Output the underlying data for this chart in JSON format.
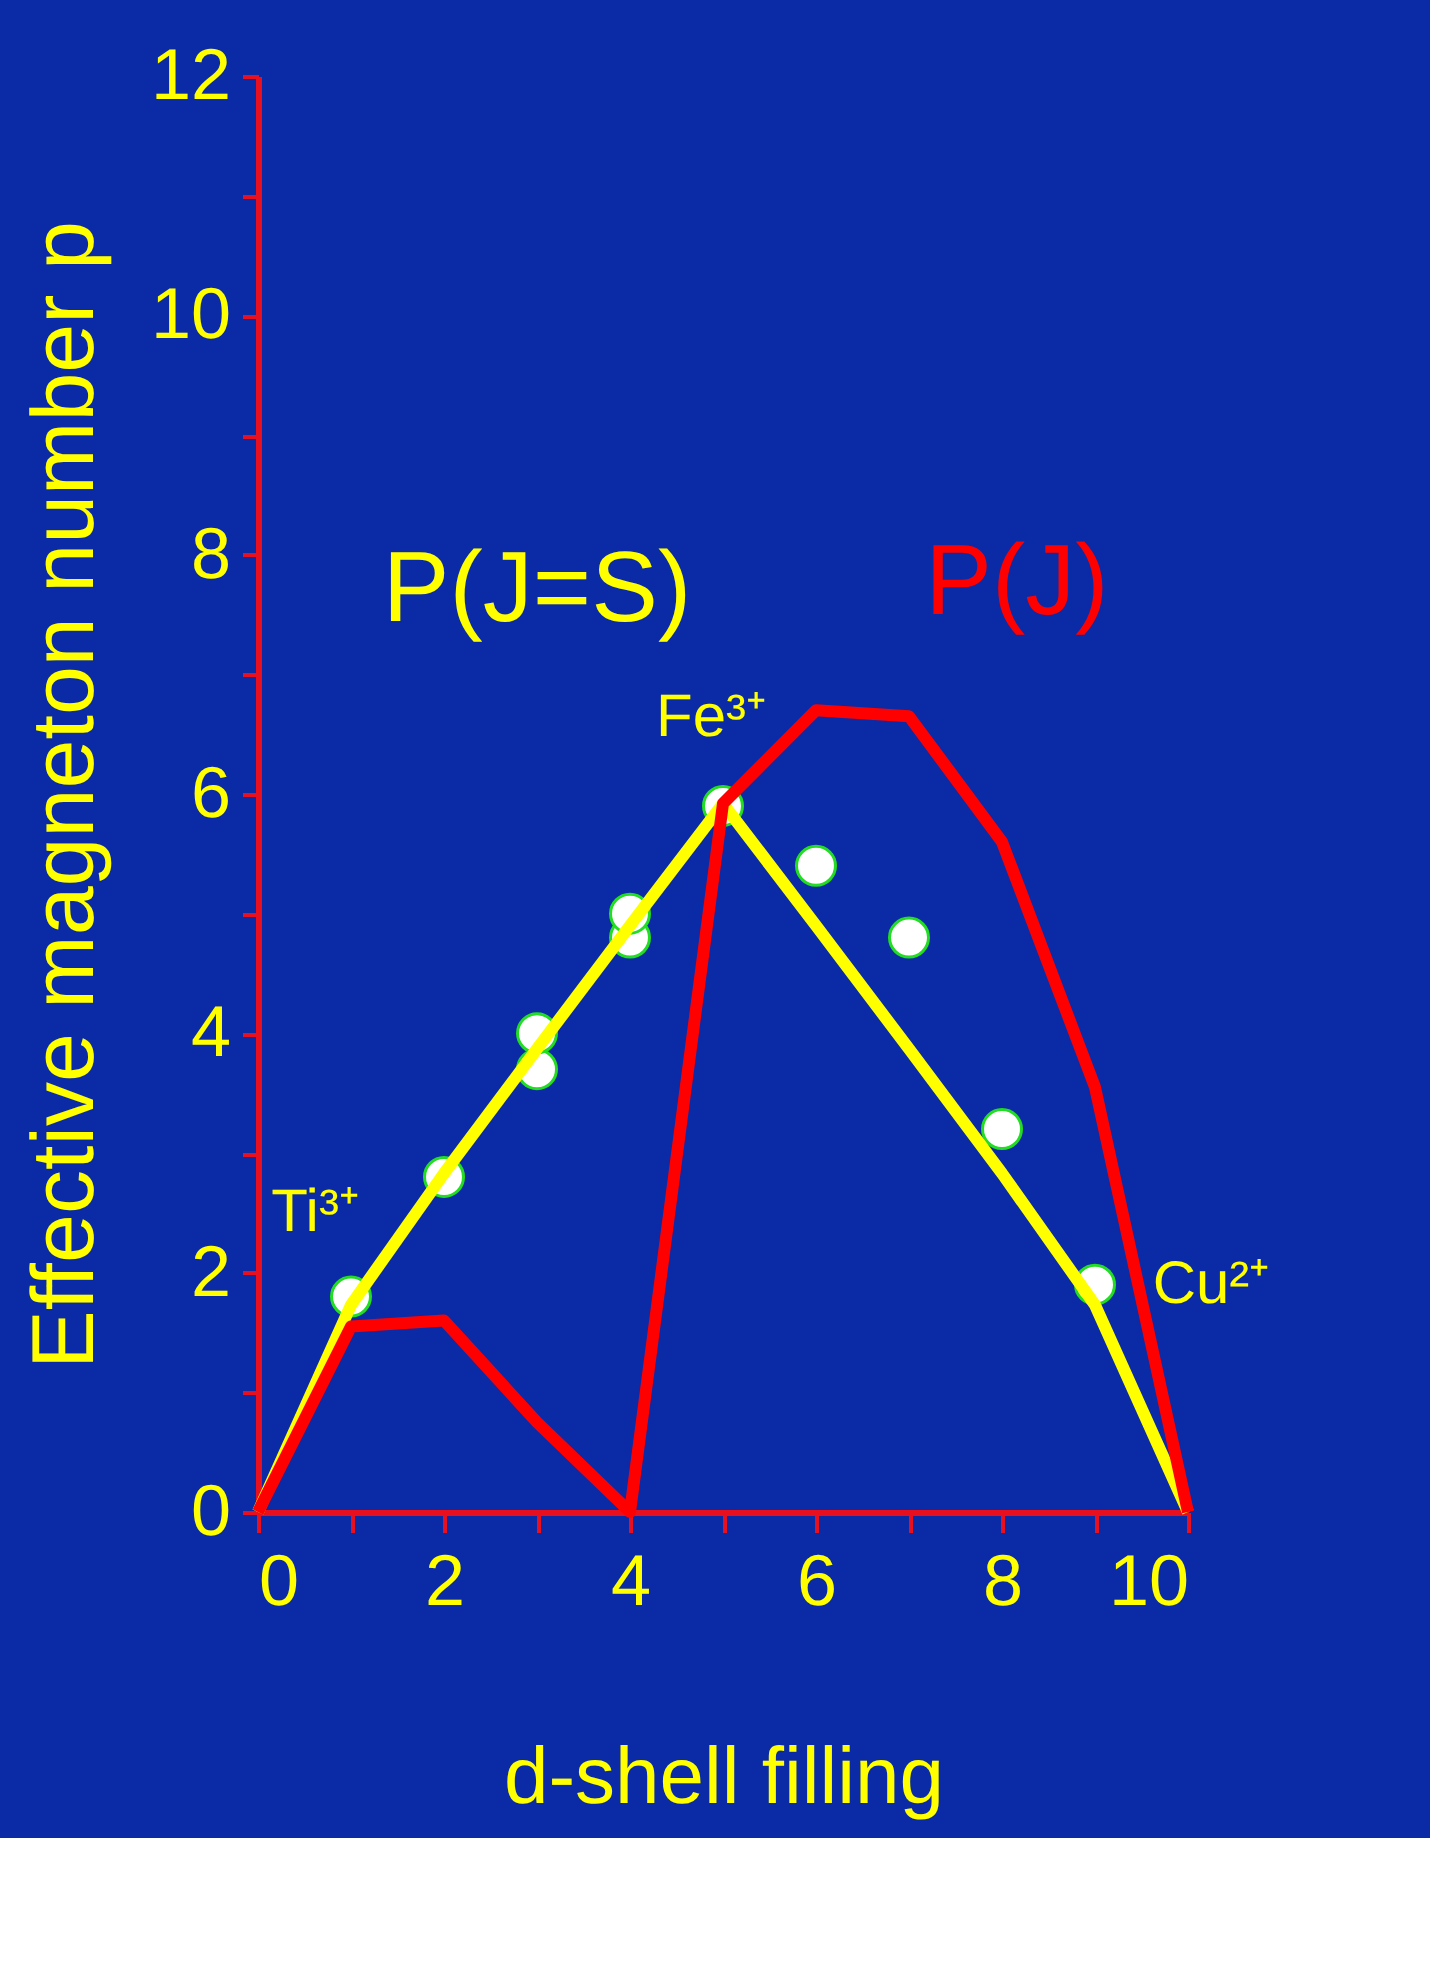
{
  "chart_data": {
    "type": "line",
    "xlabel": "d-shell filling",
    "ylabel": "Effective magneton number p",
    "x": [
      0,
      1,
      2,
      3,
      4,
      5,
      6,
      7,
      8,
      9,
      10
    ],
    "series": [
      {
        "name": "P(J=S)",
        "color": "#ffff00",
        "marker": "none",
        "values": [
          0,
          1.73,
          2.83,
          3.87,
          4.9,
          5.92,
          4.9,
          3.87,
          2.83,
          1.73,
          0
        ]
      },
      {
        "name": "P(J)",
        "color": "#ff0000",
        "marker": "none",
        "values": [
          0,
          1.55,
          1.6,
          0.75,
          0,
          5.92,
          6.7,
          6.65,
          5.6,
          3.55,
          0
        ]
      },
      {
        "type": "scatter",
        "color": "#ffffff",
        "marker": "circle",
        "x": [
          1,
          2,
          3,
          3,
          4,
          4,
          5,
          6,
          7,
          8,
          9
        ],
        "values": [
          1.8,
          2.8,
          3.7,
          4.0,
          4.8,
          5.0,
          5.9,
          5.4,
          4.8,
          3.2,
          1.9
        ]
      }
    ],
    "annotations": [
      {
        "text": "Ti³⁺",
        "x": 1,
        "y": 1.8
      },
      {
        "text": "Fe³⁺",
        "x": 5,
        "y": 5.9
      },
      {
        "text": "Cu²⁺",
        "x": 9,
        "y": 1.9
      }
    ],
    "xlim": [
      0,
      10
    ],
    "ylim": [
      0,
      12
    ],
    "xticks": [
      0,
      {
        "value": 1,
        "label": null
      },
      2,
      {
        "value": 3,
        "label": null
      },
      4,
      {
        "value": 5,
        "label": null
      },
      6,
      {
        "value": 7,
        "label": null
      },
      8,
      {
        "value": 9,
        "label": null
      },
      10
    ],
    "yticks": [
      0,
      {
        "value": 1,
        "label": null
      },
      2,
      {
        "value": 3,
        "label": null
      },
      4,
      {
        "value": 5,
        "label": null
      },
      6,
      {
        "value": 7,
        "label": null
      },
      8,
      {
        "value": 9,
        "label": null
      },
      10,
      {
        "value": 11,
        "label": null
      },
      12
    ],
    "grid": false,
    "legend": false,
    "line_style": "solid"
  }
}
